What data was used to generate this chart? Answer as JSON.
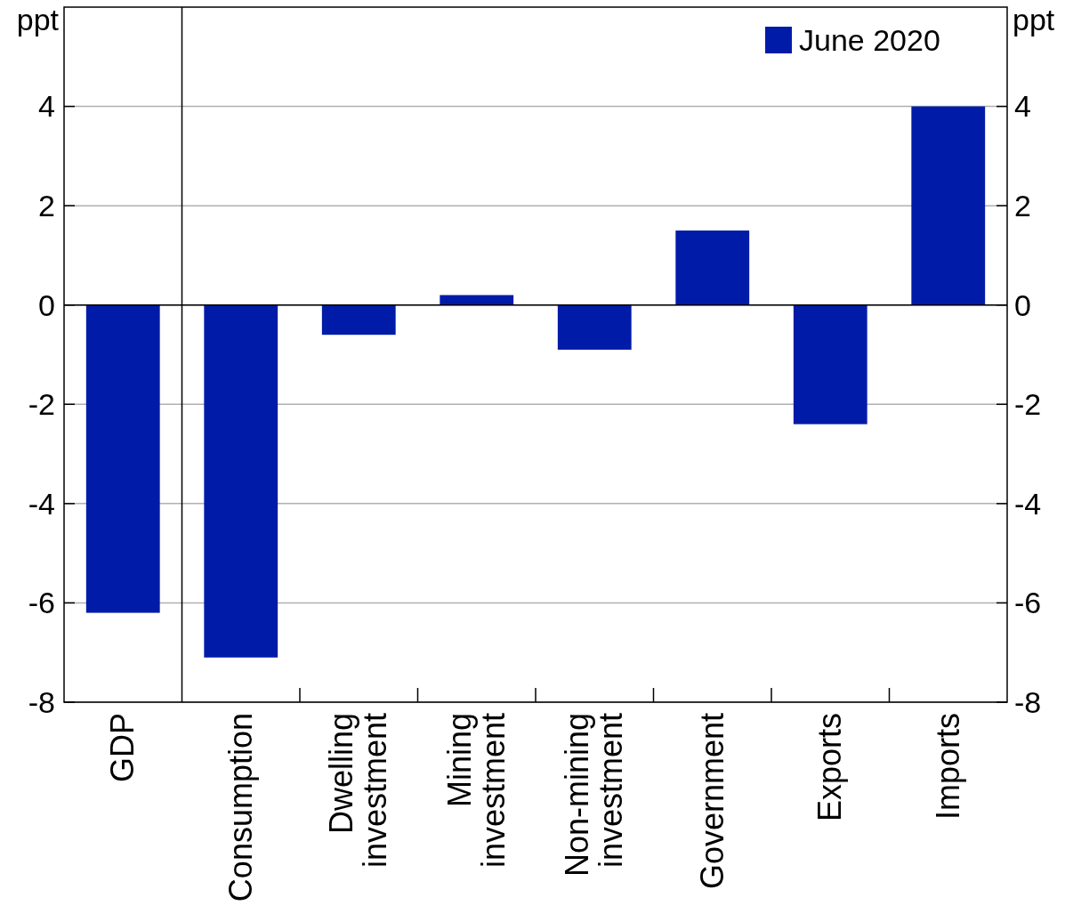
{
  "chart_data": {
    "type": "bar",
    "ylabel": "ppt",
    "y2label": "ppt",
    "categories": [
      "GDP",
      "Consumption",
      "Dwelling investment",
      "Mining investment",
      "Non-mining investment",
      "Government",
      "Exports",
      "Imports"
    ],
    "series": [
      {
        "name": "June 2020",
        "color": "#001ba8",
        "values": [
          -6.2,
          -7.1,
          -0.6,
          0.2,
          -0.9,
          1.5,
          -2.4,
          4.0
        ]
      }
    ],
    "ylim": [
      -8,
      6
    ],
    "yticks": [
      -8,
      -6,
      -4,
      -2,
      0,
      2,
      4
    ],
    "y2lim": [
      -8,
      6
    ],
    "y2ticks": [
      -8,
      -6,
      -4,
      -2,
      0,
      2,
      4
    ],
    "grid": "y",
    "legend": "top right"
  }
}
